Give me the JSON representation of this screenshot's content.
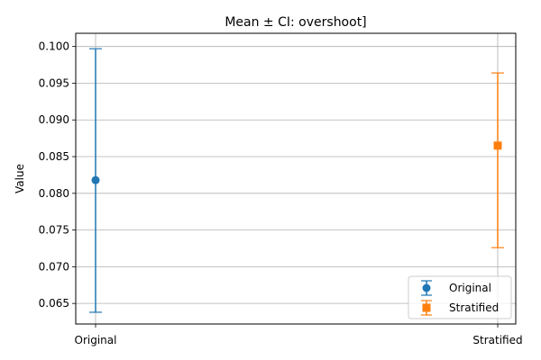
{
  "chart_data": {
    "type": "errorbar",
    "title": "Mean ± CI: overshoot]",
    "xlabel": "",
    "ylabel": "Value",
    "categories": [
      "Original",
      "Stratified"
    ],
    "ylim": [
      0.0622,
      0.1018
    ],
    "yticks": [
      0.065,
      0.07,
      0.075,
      0.08,
      0.085,
      0.09,
      0.095,
      0.1
    ],
    "ytick_labels": [
      "0.065",
      "0.070",
      "0.075",
      "0.080",
      "0.085",
      "0.090",
      "0.095",
      "0.100"
    ],
    "grid": true,
    "legend_position": "lower-right",
    "series": [
      {
        "name": "Original",
        "category": "Original",
        "mean": 0.0818,
        "ci_low": 0.0638,
        "ci_high": 0.0997,
        "color": "#1f77b4",
        "marker": "circle"
      },
      {
        "name": "Stratified",
        "category": "Stratified",
        "mean": 0.0865,
        "ci_low": 0.0726,
        "ci_high": 0.0964,
        "color": "#ff7f0e",
        "marker": "square"
      }
    ]
  }
}
